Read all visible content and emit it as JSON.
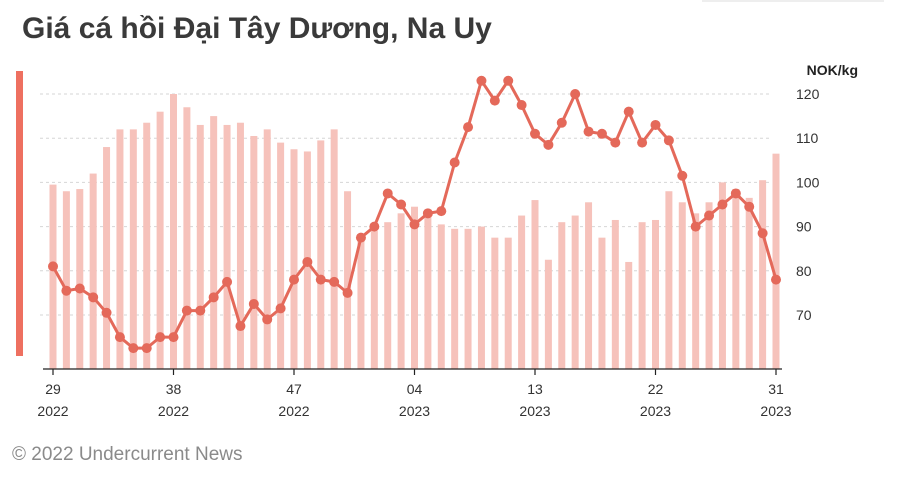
{
  "title": "Giá cá hồi Đại Tây Dương, Na Uy",
  "credit": "© 2022 Undercurrent News",
  "chart_data": {
    "type": "bar+line",
    "title": "Giá cá hồi Đại Tây Dương, Na Uy",
    "y_unit": "NOK/kg",
    "ylim": [
      56,
      128
    ],
    "yticks": [
      70,
      80,
      90,
      100,
      110,
      120
    ],
    "grid": true,
    "x_tick_labels": [
      {
        "index": 0,
        "week": "29",
        "year": "2022"
      },
      {
        "index": 9,
        "week": "38",
        "year": "2022"
      },
      {
        "index": 18,
        "week": "47",
        "year": "2022"
      },
      {
        "index": 27,
        "week": "04",
        "year": "2023"
      },
      {
        "index": 36,
        "week": "13",
        "year": "2023"
      },
      {
        "index": 45,
        "week": "22",
        "year": "2023"
      },
      {
        "index": 54,
        "week": "31",
        "year": "2023"
      }
    ],
    "series": [
      {
        "type": "bar",
        "color": "#f6c2bb",
        "values": [
          99.5,
          98,
          98.5,
          102,
          108,
          112,
          112,
          113.5,
          116,
          120,
          117,
          113,
          115,
          113,
          113.5,
          110.5,
          112,
          109,
          107.5,
          107,
          109.5,
          112,
          98,
          88,
          89,
          91,
          93,
          94.5,
          93,
          90.5,
          89.5,
          89.5,
          90,
          87.5,
          87.5,
          92.5,
          96,
          82.5,
          91,
          92.5,
          95.5,
          87.5,
          91.5,
          82,
          91,
          91.5,
          98,
          95.5,
          93,
          95.5,
          100,
          98.5,
          96.5,
          100.5,
          106.5
        ]
      },
      {
        "type": "line",
        "color": "#e4695a",
        "values": [
          81,
          75.5,
          76,
          74,
          70.5,
          65,
          62.5,
          62.5,
          65,
          65,
          71,
          71,
          74,
          77.5,
          67.5,
          72.5,
          69,
          71.5,
          78,
          82,
          78,
          77.5,
          75,
          87.5,
          90,
          97.5,
          95,
          90.5,
          93,
          93.5,
          104.5,
          112.5,
          123,
          118.5,
          123,
          117.5,
          111,
          108.5,
          113.5,
          120,
          111.5,
          111,
          109,
          116,
          109,
          113,
          109.5,
          101.5,
          90,
          92.5,
          95,
          97.5,
          94.5,
          88.5,
          78
        ]
      }
    ]
  }
}
